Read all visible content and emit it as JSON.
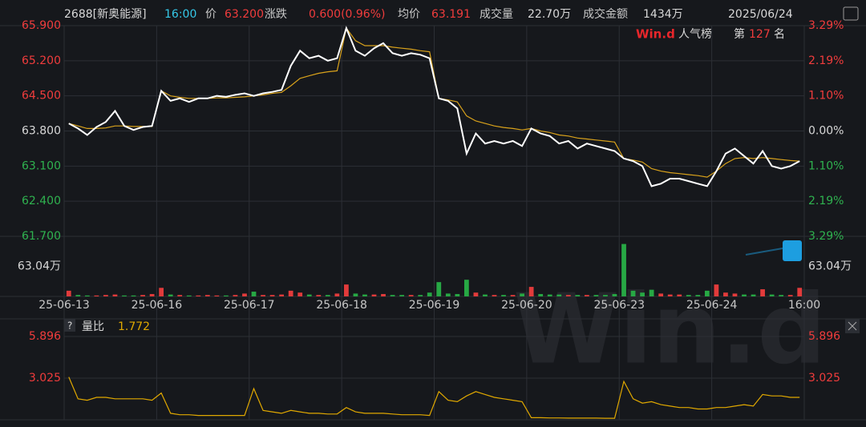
{
  "header": {
    "code": "2688[新奥能源]",
    "time": "16:00",
    "price_label": "价",
    "price": "63.200",
    "change_label": "涨跌",
    "change": "0.600(0.96%)",
    "avg_label": "均价",
    "avg": "63.191",
    "volume_label": "成交量",
    "volume": "22.70万",
    "amount_label": "成交金额",
    "amount": "1434万",
    "date": "2025/06/24"
  },
  "rank": {
    "brand": "Win.d",
    "title": "人气榜",
    "prefix": "第",
    "value": "127",
    "suffix": "名"
  },
  "watermark": "Win.d",
  "ratio_panel": {
    "help": "?",
    "label": "量比",
    "value": "1.772"
  },
  "chart_data": [
    {
      "type": "line",
      "xticks": [
        "25-06-13",
        "25-06-16",
        "25-06-17",
        "25-06-18",
        "25-06-19",
        "25-06-20",
        "25-06-23",
        "25-06-24",
        "16:00"
      ],
      "ylim": [
        61.7,
        65.9
      ],
      "yticks": [
        {
          "value": 65.9,
          "label": "65.900"
        },
        {
          "value": 65.2,
          "label": "65.200"
        },
        {
          "value": 64.5,
          "label": "64.500"
        },
        {
          "value": 63.8,
          "label": "63.800"
        },
        {
          "value": 63.1,
          "label": "63.100"
        },
        {
          "value": 62.4,
          "label": "62.400"
        },
        {
          "value": 61.7,
          "label": "61.700"
        }
      ],
      "y2lim": [
        -3.29,
        3.29
      ],
      "y2ticks": [
        {
          "value": 3.29,
          "label": "3.29%"
        },
        {
          "value": 2.19,
          "label": "2.19%"
        },
        {
          "value": 1.1,
          "label": "1.10%"
        },
        {
          "value": 0,
          "label": "0.00%"
        },
        {
          "value": -1.1,
          "label": "1.10%"
        },
        {
          "value": -2.19,
          "label": "2.19%"
        },
        {
          "value": -3.29,
          "label": "3.29%"
        }
      ],
      "series": [
        {
          "color": "#ffffff",
          "values": [
            63.95,
            63.85,
            63.72,
            63.88,
            63.98,
            64.2,
            63.9,
            63.82,
            63.88,
            63.9,
            64.6,
            64.4,
            64.45,
            64.38,
            64.45,
            64.45,
            64.5,
            64.48,
            64.52,
            64.55,
            64.5,
            64.55,
            64.58,
            64.62,
            65.1,
            65.4,
            65.25,
            65.3,
            65.2,
            65.25,
            65.85,
            65.4,
            65.3,
            65.45,
            65.55,
            65.35,
            65.3,
            65.35,
            65.32,
            65.25,
            64.45,
            64.4,
            64.25,
            63.35,
            63.75,
            63.55,
            63.6,
            63.55,
            63.6,
            63.5,
            63.85,
            63.75,
            63.7,
            63.55,
            63.6,
            63.45,
            63.55,
            63.5,
            63.45,
            63.4,
            63.25,
            63.2,
            63.1,
            62.7,
            62.75,
            62.85,
            62.85,
            62.8,
            62.75,
            62.7,
            63.0,
            63.35,
            63.45,
            63.3,
            63.15,
            63.4,
            63.1,
            63.05,
            63.1,
            63.2
          ]
        },
        {
          "color": "#d9a21b",
          "values": [
            63.95,
            63.9,
            63.85,
            63.85,
            63.86,
            63.9,
            63.9,
            63.89,
            63.89,
            63.89,
            64.6,
            64.5,
            64.47,
            64.45,
            64.45,
            64.45,
            64.46,
            64.46,
            64.47,
            64.48,
            64.5,
            64.52,
            64.55,
            64.57,
            64.7,
            64.85,
            64.9,
            64.95,
            64.98,
            65.0,
            65.85,
            65.6,
            65.5,
            65.5,
            65.5,
            65.47,
            65.45,
            65.43,
            65.4,
            65.38,
            64.45,
            64.42,
            64.38,
            64.1,
            64.0,
            63.95,
            63.9,
            63.87,
            63.85,
            63.82,
            63.85,
            63.8,
            63.77,
            63.72,
            63.7,
            63.66,
            63.64,
            63.62,
            63.6,
            63.58,
            63.25,
            63.22,
            63.18,
            63.05,
            63.0,
            62.97,
            62.95,
            62.93,
            62.91,
            62.88,
            63.0,
            63.15,
            63.25,
            63.27,
            63.25,
            63.27,
            63.25,
            63.23,
            63.21,
            63.2
          ]
        }
      ]
    },
    {
      "type": "bar",
      "ylim": [
        0,
        126.08
      ],
      "yticks": [
        {
          "value": 63.04,
          "label": "63.04万"
        }
      ],
      "values": [
        12,
        3,
        2,
        2,
        3,
        4,
        2,
        2,
        3,
        5,
        18,
        4,
        3,
        2,
        2,
        3,
        2,
        2,
        3,
        6,
        10,
        3,
        3,
        4,
        12,
        8,
        4,
        3,
        3,
        6,
        25,
        6,
        4,
        4,
        5,
        3,
        3,
        3,
        3,
        8,
        30,
        6,
        5,
        35,
        8,
        4,
        3,
        3,
        3,
        6,
        20,
        5,
        4,
        4,
        3,
        3,
        3,
        3,
        3,
        5,
        110,
        12,
        8,
        14,
        6,
        4,
        4,
        3,
        3,
        12,
        25,
        8,
        6,
        4,
        4,
        15,
        4,
        3,
        3,
        18
      ],
      "up_color": "#e23b3b",
      "down_color": "#27a844"
    },
    {
      "type": "line",
      "ylim": [
        0.154,
        5.896
      ],
      "yticks": [
        5.896,
        3.025
      ],
      "color": "#e0a800",
      "values": [
        3.1,
        1.6,
        1.5,
        1.7,
        1.7,
        1.6,
        1.6,
        1.6,
        1.6,
        1.5,
        2.0,
        0.6,
        0.5,
        0.5,
        0.45,
        0.45,
        0.45,
        0.45,
        0.45,
        0.45,
        2.3,
        0.8,
        0.7,
        0.6,
        0.8,
        0.7,
        0.6,
        0.6,
        0.55,
        0.55,
        1.0,
        0.7,
        0.6,
        0.6,
        0.6,
        0.55,
        0.5,
        0.5,
        0.5,
        0.45,
        2.1,
        1.5,
        1.4,
        1.8,
        2.1,
        1.9,
        1.7,
        1.6,
        1.5,
        1.4,
        0.3,
        0.3,
        0.28,
        0.28,
        0.27,
        0.27,
        0.27,
        0.27,
        0.26,
        0.26,
        2.8,
        1.6,
        1.3,
        1.4,
        1.2,
        1.1,
        1.0,
        1.0,
        0.9,
        0.9,
        1.0,
        1.0,
        1.1,
        1.2,
        1.1,
        1.9,
        1.8,
        1.8,
        1.7,
        1.7
      ]
    }
  ]
}
